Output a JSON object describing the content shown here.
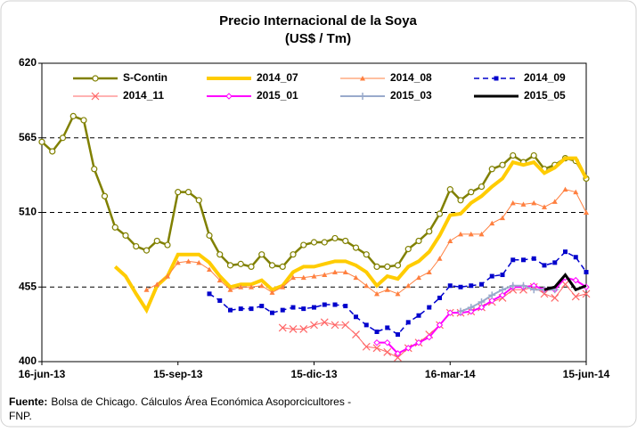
{
  "chart_data": {
    "type": "line",
    "title": "Precio Internacional de la Soya",
    "subtitle": "(US$ / Tm)",
    "source_label": "Fuente:",
    "source_text": "Bolsa de Chicago. Cálculos Área Económica Asoporcicultores - FNP.",
    "categories": [
      "16-jun-13",
      null,
      null,
      null,
      null,
      null,
      null,
      null,
      null,
      null,
      null,
      null,
      null,
      "15-sep-13",
      null,
      null,
      null,
      null,
      null,
      null,
      null,
      null,
      null,
      null,
      null,
      null,
      "15-dic-13",
      null,
      null,
      null,
      null,
      null,
      null,
      null,
      null,
      null,
      null,
      null,
      null,
      "16-mar-14",
      null,
      null,
      null,
      null,
      null,
      null,
      null,
      null,
      null,
      null,
      null,
      null,
      "15-jun-14"
    ],
    "ylim": [
      400,
      620
    ],
    "yticks": [
      400,
      455,
      510,
      565,
      620
    ],
    "grid": true,
    "series": [
      {
        "name": "S-Contin",
        "color": "#808000",
        "marker": "circle",
        "width": 2.5,
        "values": [
          562,
          555,
          565,
          581,
          578,
          542,
          522,
          499,
          493,
          485,
          482,
          489,
          486,
          525,
          525,
          519,
          493,
          479,
          471,
          472,
          470,
          479,
          471,
          470,
          479,
          486,
          488,
          488,
          491,
          489,
          484,
          479,
          470,
          470,
          471,
          483,
          489,
          496,
          509,
          527,
          519,
          525,
          529,
          542,
          545,
          552,
          547,
          552,
          542,
          545,
          550,
          548,
          535
        ]
      },
      {
        "name": "2014_07",
        "color": "#ffcc00",
        "marker": "none",
        "width": 4,
        "values": [
          null,
          null,
          null,
          null,
          null,
          null,
          null,
          470,
          463,
          450,
          438,
          456,
          463,
          479,
          479,
          479,
          473,
          463,
          455,
          457,
          457,
          460,
          453,
          456,
          466,
          470,
          470,
          472,
          474,
          474,
          471,
          466,
          456,
          463,
          461,
          470,
          474,
          481,
          493,
          508,
          509,
          517,
          522,
          529,
          535,
          547,
          545,
          547,
          539,
          543,
          550,
          550,
          535
        ]
      },
      {
        "name": "2014_08",
        "color": "#ff8040",
        "marker": "triangle",
        "width": 1,
        "values": [
          null,
          null,
          null,
          null,
          null,
          null,
          null,
          null,
          null,
          null,
          453,
          457,
          463,
          473,
          474,
          473,
          468,
          460,
          453,
          455,
          455,
          456,
          451,
          455,
          462,
          462,
          463,
          464,
          466,
          466,
          462,
          456,
          450,
          453,
          450,
          456,
          462,
          466,
          476,
          489,
          494,
          494,
          494,
          502,
          506,
          517,
          516,
          517,
          514,
          518,
          527,
          525,
          510
        ]
      },
      {
        "name": "2014_09",
        "color": "#0000cc",
        "marker": "square",
        "width": 1.5,
        "dash": true,
        "values": [
          null,
          null,
          null,
          null,
          null,
          null,
          null,
          null,
          null,
          null,
          null,
          null,
          null,
          null,
          null,
          null,
          450,
          445,
          438,
          439,
          439,
          441,
          436,
          438,
          440,
          439,
          440,
          442,
          442,
          441,
          433,
          427,
          422,
          425,
          420,
          429,
          434,
          440,
          447,
          456,
          455,
          456,
          457,
          463,
          464,
          475,
          475,
          476,
          471,
          473,
          481,
          477,
          466
        ]
      },
      {
        "name": "2014_11",
        "color": "#ff6666",
        "marker": "x",
        "width": 1,
        "values": [
          null,
          null,
          null,
          null,
          null,
          null,
          null,
          null,
          null,
          null,
          null,
          null,
          null,
          null,
          null,
          null,
          null,
          null,
          null,
          null,
          null,
          null,
          null,
          425,
          424,
          424,
          427,
          429,
          427,
          427,
          420,
          411,
          410,
          407,
          403,
          410,
          414,
          420,
          427,
          436,
          436,
          437,
          440,
          444,
          447,
          453,
          453,
          455,
          450,
          447,
          457,
          448,
          450
        ]
      },
      {
        "name": "2015_01",
        "color": "#ff00ff",
        "marker": "diamond",
        "width": 2,
        "values": [
          null,
          null,
          null,
          null,
          null,
          null,
          null,
          null,
          null,
          null,
          null,
          null,
          null,
          null,
          null,
          null,
          null,
          null,
          null,
          null,
          null,
          null,
          null,
          null,
          null,
          null,
          null,
          null,
          null,
          null,
          null,
          null,
          414,
          414,
          406,
          410,
          414,
          418,
          427,
          436,
          436,
          437,
          440,
          445,
          449,
          455,
          455,
          456,
          453,
          453,
          462,
          460,
          455
        ]
      },
      {
        "name": "2015_03",
        "color": "#99aacc",
        "marker": "plus",
        "width": 2,
        "values": [
          null,
          null,
          null,
          null,
          null,
          null,
          null,
          null,
          null,
          null,
          null,
          null,
          null,
          null,
          null,
          null,
          null,
          null,
          null,
          null,
          null,
          null,
          null,
          null,
          null,
          null,
          null,
          null,
          null,
          null,
          null,
          null,
          null,
          null,
          null,
          null,
          null,
          null,
          null,
          null,
          437,
          440,
          444,
          449,
          453,
          456,
          456,
          453,
          453,
          453,
          null,
          null,
          null
        ]
      },
      {
        "name": "2015_05",
        "color": "#000000",
        "marker": "none",
        "width": 3,
        "values": [
          null,
          null,
          null,
          null,
          null,
          null,
          null,
          null,
          null,
          null,
          null,
          null,
          null,
          null,
          null,
          null,
          null,
          null,
          null,
          null,
          null,
          null,
          null,
          null,
          null,
          null,
          null,
          null,
          null,
          null,
          null,
          null,
          null,
          null,
          null,
          null,
          null,
          null,
          null,
          null,
          null,
          null,
          null,
          null,
          null,
          null,
          null,
          null,
          453,
          455,
          464,
          453,
          456
        ]
      }
    ]
  }
}
